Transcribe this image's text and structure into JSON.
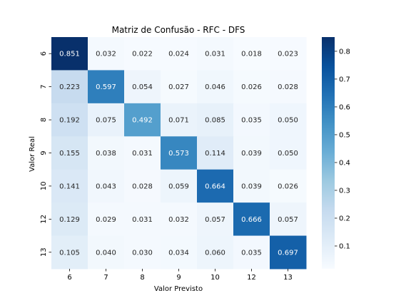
{
  "chart_data": {
    "type": "heatmap",
    "title": "Matriz de Confusão - RFC - DFS",
    "xlabel": "Valor Previsto",
    "ylabel": "Valor Real",
    "x_categories": [
      "6",
      "7",
      "8",
      "9",
      "10",
      "12",
      "13"
    ],
    "y_categories": [
      "6",
      "7",
      "8",
      "9",
      "10",
      "12",
      "13"
    ],
    "values": [
      [
        0.851,
        0.032,
        0.022,
        0.024,
        0.031,
        0.018,
        0.023
      ],
      [
        0.223,
        0.597,
        0.054,
        0.027,
        0.046,
        0.026,
        0.028
      ],
      [
        0.192,
        0.075,
        0.492,
        0.071,
        0.085,
        0.035,
        0.05
      ],
      [
        0.155,
        0.038,
        0.031,
        0.573,
        0.114,
        0.039,
        0.05
      ],
      [
        0.141,
        0.043,
        0.028,
        0.059,
        0.664,
        0.039,
        0.026
      ],
      [
        0.129,
        0.029,
        0.031,
        0.032,
        0.057,
        0.666,
        0.057
      ],
      [
        0.105,
        0.04,
        0.03,
        0.034,
        0.06,
        0.035,
        0.697
      ]
    ],
    "value_labels": [
      [
        "0.851",
        "0.032",
        "0.022",
        "0.024",
        "0.031",
        "0.018",
        "0.023"
      ],
      [
        "0.223",
        "0.597",
        "0.054",
        "0.027",
        "0.046",
        "0.026",
        "0.028"
      ],
      [
        "0.192",
        "0.075",
        "0.492",
        "0.071",
        "0.085",
        "0.035",
        "0.050"
      ],
      [
        "0.155",
        "0.038",
        "0.031",
        "0.573",
        "0.114",
        "0.039",
        "0.050"
      ],
      [
        "0.141",
        "0.043",
        "0.028",
        "0.059",
        "0.664",
        "0.039",
        "0.026"
      ],
      [
        "0.129",
        "0.029",
        "0.031",
        "0.032",
        "0.057",
        "0.666",
        "0.057"
      ],
      [
        "0.105",
        "0.040",
        "0.030",
        "0.034",
        "0.060",
        "0.035",
        "0.697"
      ]
    ],
    "colorbar": {
      "ticks": [
        0.1,
        0.2,
        0.3,
        0.4,
        0.5,
        0.6,
        0.7,
        0.8
      ],
      "tick_labels": [
        "0.1",
        "0.2",
        "0.3",
        "0.4",
        "0.5",
        "0.6",
        "0.7",
        "0.8"
      ]
    },
    "colormap": "Blues",
    "colors": {
      "low": "#f7fbff",
      "high": "#08306b",
      "text_dark": "#262626",
      "text_light": "#ffffff",
      "axis": "#000000"
    },
    "grid": false
  }
}
